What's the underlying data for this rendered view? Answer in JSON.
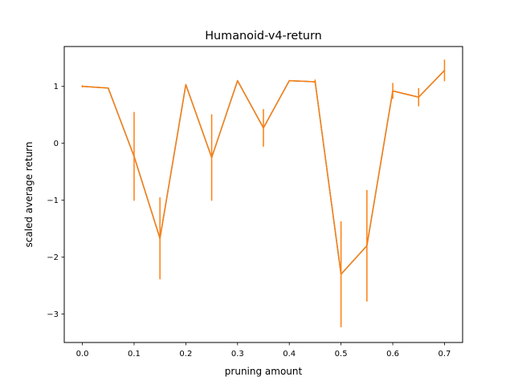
{
  "chart_data": {
    "type": "line",
    "title": "Humanoid-v4-return",
    "xlabel": "pruning amount",
    "ylabel": "scaled average return",
    "xlim": [
      -0.035,
      0.735
    ],
    "ylim": [
      -3.5,
      1.7
    ],
    "x_ticks": [
      0.0,
      0.1,
      0.2,
      0.3,
      0.4,
      0.5,
      0.6,
      0.7
    ],
    "x_tick_labels": [
      "0.0",
      "0.1",
      "0.2",
      "0.3",
      "0.4",
      "0.5",
      "0.6",
      "0.7"
    ],
    "y_ticks": [
      -3,
      -2,
      -1,
      0,
      1
    ],
    "y_tick_labels": [
      "−3",
      "−2",
      "−1",
      "0",
      "1"
    ],
    "grid": false,
    "colors": {
      "series": "#ff7f0e",
      "underlay": "#1f77b4"
    },
    "series": [
      {
        "x": [
          0.0,
          0.05,
          0.1,
          0.15,
          0.2,
          0.25,
          0.3,
          0.35,
          0.4,
          0.45,
          0.5,
          0.55,
          0.6,
          0.65,
          0.7
        ],
        "y": [
          1.0,
          0.97,
          -0.23,
          -1.67,
          1.03,
          -0.25,
          1.1,
          0.27,
          1.1,
          1.08,
          -2.3,
          -1.8,
          0.92,
          0.81,
          1.28
        ],
        "yerr": [
          0.02,
          0.0,
          0.78,
          0.72,
          0.0,
          0.76,
          0.0,
          0.33,
          0.0,
          0.04,
          0.93,
          0.98,
          0.14,
          0.16,
          0.19
        ]
      }
    ]
  }
}
